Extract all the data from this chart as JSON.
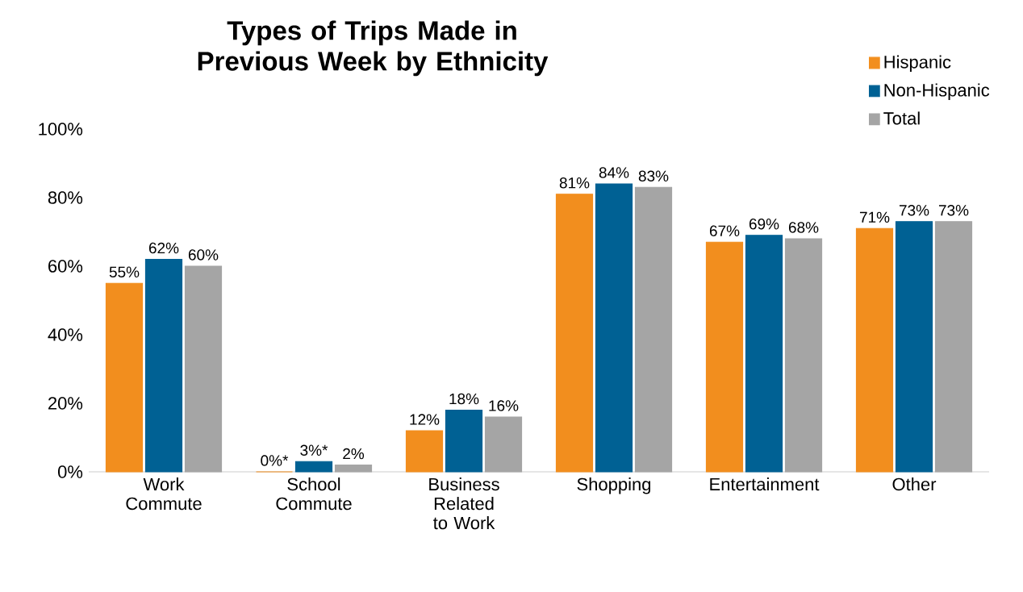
{
  "chart_data": {
    "type": "bar",
    "title": "Types of Trips Made in Previous Week by Ethnicity",
    "categories": [
      "Work Commute",
      "School Commute",
      "Business Related to Work",
      "Shopping",
      "Entertainment",
      "Other"
    ],
    "series": [
      {
        "name": "Hispanic",
        "color": "#f28e1e",
        "values": [
          55,
          0,
          12,
          81,
          67,
          71
        ],
        "value_labels": [
          "55%",
          "0%*",
          "12%",
          "81%",
          "67%",
          "71%"
        ]
      },
      {
        "name": "Non-Hispanic",
        "color": "#006194",
        "values": [
          62,
          3,
          18,
          84,
          69,
          73
        ],
        "value_labels": [
          "62%",
          "3%*",
          "18%",
          "84%",
          "69%",
          "73%"
        ]
      },
      {
        "name": "Total",
        "color": "#a5a5a5",
        "values": [
          60,
          2,
          16,
          83,
          68,
          73
        ],
        "value_labels": [
          "60%",
          "2%",
          "16%",
          "83%",
          "68%",
          "73%"
        ]
      }
    ],
    "ylim": [
      0,
      100
    ],
    "yticks": [
      {
        "value": 0,
        "label": "0%"
      },
      {
        "value": 20,
        "label": "20%"
      },
      {
        "value": 40,
        "label": "40%"
      },
      {
        "value": 60,
        "label": "60%"
      },
      {
        "value": 80,
        "label": "80%"
      },
      {
        "value": 100,
        "label": "100%"
      }
    ],
    "grid": false,
    "legend": "top right"
  }
}
